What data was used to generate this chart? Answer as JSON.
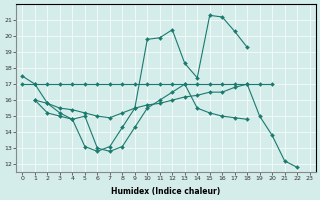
{
  "xlabel": "Humidex (Indice chaleur)",
  "background_color": "#d4ecea",
  "line_color": "#1a7a6e",
  "grid_color": "#ffffff",
  "series1_x": [
    0,
    1,
    2,
    3,
    4,
    5,
    6,
    7,
    8,
    9,
    10,
    11,
    12,
    13,
    14,
    15,
    16,
    17,
    18
  ],
  "series1_y": [
    17.5,
    17.0,
    15.8,
    15.2,
    14.8,
    13.1,
    12.8,
    13.1,
    14.3,
    15.5,
    19.8,
    19.9,
    20.4,
    18.3,
    17.4,
    21.3,
    21.2,
    20.3,
    19.3
  ],
  "series2_x": [
    0,
    1,
    2,
    3,
    4,
    5,
    6,
    7,
    8,
    9,
    10,
    11,
    12,
    13,
    14,
    15,
    16,
    17,
    18,
    19,
    20
  ],
  "series2_y": [
    17.0,
    17.0,
    17.0,
    17.0,
    17.0,
    17.0,
    17.0,
    17.0,
    17.0,
    17.0,
    17.0,
    17.0,
    17.0,
    17.0,
    17.0,
    17.0,
    17.0,
    17.0,
    17.0,
    17.0,
    17.0
  ],
  "series3_x": [
    1,
    2,
    3,
    4,
    5,
    6,
    7,
    8,
    9,
    10,
    11,
    12,
    13,
    14,
    15,
    16,
    17,
    18,
    19,
    20,
    21,
    22
  ],
  "series3_y": [
    16.0,
    15.8,
    15.5,
    15.4,
    15.2,
    15.0,
    14.9,
    15.2,
    15.5,
    15.7,
    15.8,
    16.0,
    16.2,
    16.3,
    16.5,
    16.5,
    16.8,
    17.0,
    15.0,
    13.8,
    12.2,
    11.8
  ],
  "series4_x": [
    1,
    2,
    3,
    4,
    5,
    6,
    7,
    8,
    9,
    10,
    11,
    12,
    13,
    14,
    15,
    16,
    17,
    18
  ],
  "series4_y": [
    16.0,
    15.2,
    15.0,
    14.8,
    15.0,
    13.0,
    12.8,
    13.1,
    14.3,
    15.5,
    16.0,
    16.5,
    17.0,
    15.5,
    15.2,
    15.0,
    14.9,
    14.8
  ]
}
